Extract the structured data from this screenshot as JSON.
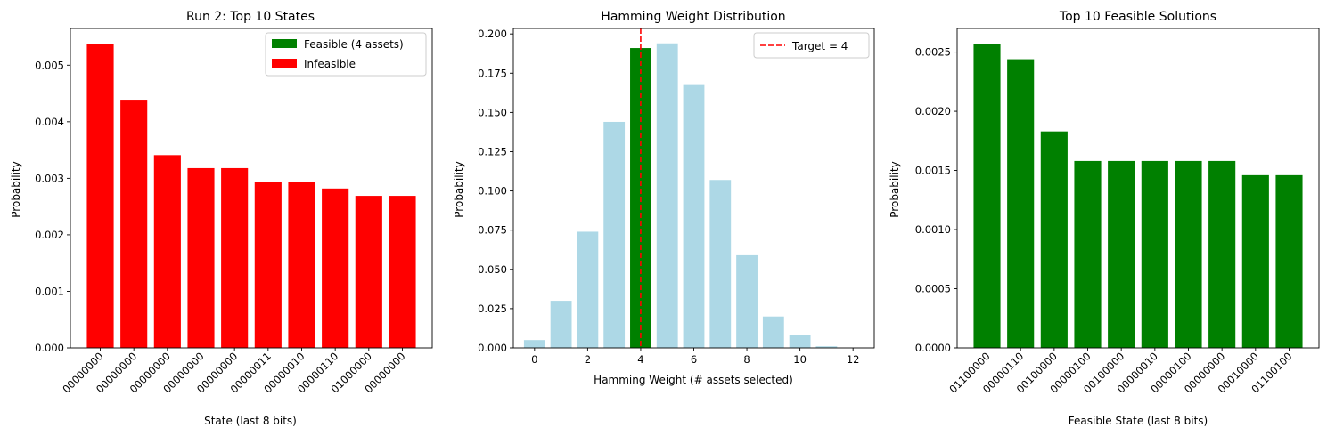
{
  "chart_data": [
    {
      "type": "bar",
      "title": "Run 2: Top 10 States",
      "xlabel": "State (last 8 bits)",
      "ylabel": "Probability",
      "categories": [
        "00000000",
        "00000000",
        "00000000",
        "00000000",
        "00000000",
        "00000011",
        "00000010",
        "00000110",
        "01000000",
        "00000000"
      ],
      "values": [
        0.00538,
        0.00439,
        0.00341,
        0.00318,
        0.00318,
        0.00293,
        0.00293,
        0.00282,
        0.00269,
        0.00269
      ],
      "bar_color": "#ff0000",
      "ylim": [
        0,
        0.00565
      ],
      "yticks": [
        0.0,
        0.001,
        0.002,
        0.003,
        0.004,
        0.005
      ],
      "ytick_labels": [
        "0.000",
        "0.001",
        "0.002",
        "0.003",
        "0.004",
        "0.005"
      ],
      "legend": {
        "position": "upper-right",
        "entries": [
          {
            "label": "Feasible (4 assets)",
            "color": "#008000"
          },
          {
            "label": "Infeasible",
            "color": "#ff0000"
          }
        ]
      }
    },
    {
      "type": "bar",
      "title": "Hamming Weight Distribution",
      "xlabel": "Hamming Weight (# assets selected)",
      "ylabel": "Probability",
      "x": [
        0,
        1,
        2,
        3,
        4,
        5,
        6,
        7,
        8,
        9,
        10,
        11,
        12
      ],
      "values": [
        0.005,
        0.03,
        0.074,
        0.144,
        0.191,
        0.194,
        0.168,
        0.107,
        0.059,
        0.02,
        0.008,
        0.001,
        0.0
      ],
      "bar_color": "#add8e6",
      "highlight": {
        "x": 4,
        "color": "#008000"
      },
      "target_line": {
        "x": 4,
        "color": "#ff0000",
        "style": "dashed",
        "label": "Target = 4"
      },
      "xlim": [
        -0.8,
        12.8
      ],
      "xticks": [
        0,
        2,
        4,
        6,
        8,
        10,
        12
      ],
      "ylim": [
        0,
        0.2035
      ],
      "yticks": [
        0.0,
        0.025,
        0.05,
        0.075,
        0.1,
        0.125,
        0.15,
        0.175,
        0.2
      ],
      "ytick_labels": [
        "0.000",
        "0.025",
        "0.050",
        "0.075",
        "0.100",
        "0.125",
        "0.150",
        "0.175",
        "0.200"
      ],
      "legend": {
        "position": "upper-right",
        "entries": [
          {
            "label": "Target = 4",
            "color": "#ff0000",
            "style": "dashed"
          }
        ]
      }
    },
    {
      "type": "bar",
      "title": "Top 10 Feasible Solutions",
      "xlabel": "Feasible State (last 8 bits)",
      "ylabel": "Probability",
      "categories": [
        "01100000",
        "00000110",
        "00100000",
        "00000100",
        "00100000",
        "00000010",
        "00000100",
        "00000000",
        "00010000",
        "01100100"
      ],
      "values": [
        0.00257,
        0.00244,
        0.00183,
        0.00158,
        0.00158,
        0.00158,
        0.00158,
        0.00158,
        0.00146,
        0.00146
      ],
      "bar_color": "#008000",
      "ylim": [
        0,
        0.0027
      ],
      "yticks": [
        0.0,
        0.0005,
        0.001,
        0.0015,
        0.002,
        0.0025
      ],
      "ytick_labels": [
        "0.0000",
        "0.0005",
        "0.0010",
        "0.0015",
        "0.0020",
        "0.0025"
      ]
    }
  ]
}
